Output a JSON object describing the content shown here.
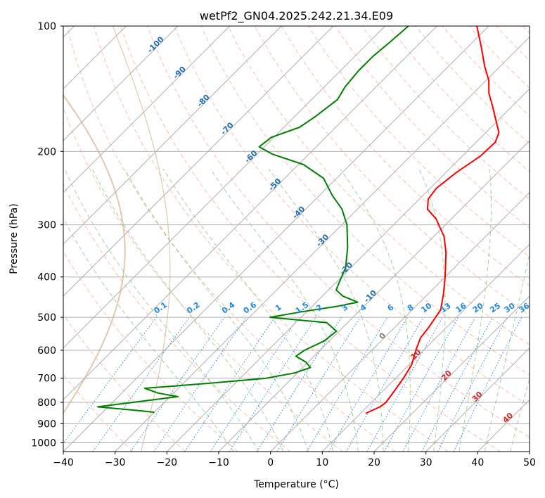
{
  "chart_data": {
    "type": "line",
    "title": "wetPf2_GN04.2025.242.21.34.E09",
    "xlabel": "Temperature (°C)",
    "ylabel": "Pressure (hPa)",
    "xlim": [
      -40,
      50
    ],
    "ylim": [
      1050,
      100
    ],
    "y_scale": "log",
    "skew": "45 degrees",
    "grid": true,
    "x_ticks": [
      "−40",
      "−30",
      "−20",
      "−10",
      "0",
      "10",
      "20",
      "30",
      "40",
      "50"
    ],
    "y_ticks": [
      "100",
      "200",
      "300",
      "400",
      "500",
      "600",
      "700",
      "800",
      "900",
      "1000"
    ],
    "series": [
      {
        "role": "temperature",
        "color": "#ff0000",
        "points": [
          {
            "p": 850,
            "t": 11.0
          },
          {
            "p": 820,
            "t": 12.5
          },
          {
            "p": 800,
            "t": 12.8
          },
          {
            "p": 750,
            "t": 12.2
          },
          {
            "p": 700,
            "t": 11.5
          },
          {
            "p": 650,
            "t": 10.5
          },
          {
            "p": 600,
            "t": 8.5
          },
          {
            "p": 560,
            "t": 7.0
          },
          {
            "p": 530,
            "t": 6.6
          },
          {
            "p": 480,
            "t": 5.5
          },
          {
            "p": 440,
            "t": 3.0
          },
          {
            "p": 400,
            "t": 0.0
          },
          {
            "p": 350,
            "t": -4.5
          },
          {
            "p": 320,
            "t": -8.0
          },
          {
            "p": 290,
            "t": -13.0
          },
          {
            "p": 275,
            "t": -16.5
          },
          {
            "p": 260,
            "t": -18.3
          },
          {
            "p": 245,
            "t": -18.8
          },
          {
            "p": 225,
            "t": -18.0
          },
          {
            "p": 205,
            "t": -16.5
          },
          {
            "p": 190,
            "t": -16.3
          },
          {
            "p": 180,
            "t": -17.5
          },
          {
            "p": 170,
            "t": -20.0
          },
          {
            "p": 155,
            "t": -24.0
          },
          {
            "p": 145,
            "t": -27.0
          },
          {
            "p": 135,
            "t": -29.5
          },
          {
            "p": 125,
            "t": -33.0
          },
          {
            "p": 112,
            "t": -37.5
          },
          {
            "p": 100,
            "t": -42.3
          }
        ]
      },
      {
        "role": "dewpoint",
        "color": "#008000",
        "points": [
          {
            "p": 845,
            "t": -30.0
          },
          {
            "p": 838,
            "t": -33.0
          },
          {
            "p": 830,
            "t": -37.0
          },
          {
            "p": 820,
            "t": -42.0
          },
          {
            "p": 800,
            "t": -36.0
          },
          {
            "p": 775,
            "t": -28.5
          },
          {
            "p": 760,
            "t": -33.0
          },
          {
            "p": 740,
            "t": -36.5
          },
          {
            "p": 720,
            "t": -25.0
          },
          {
            "p": 700,
            "t": -15.0
          },
          {
            "p": 680,
            "t": -10.5
          },
          {
            "p": 660,
            "t": -8.5
          },
          {
            "p": 640,
            "t": -10.5
          },
          {
            "p": 620,
            "t": -13.5
          },
          {
            "p": 600,
            "t": -13.0
          },
          {
            "p": 570,
            "t": -11.0
          },
          {
            "p": 540,
            "t": -10.5
          },
          {
            "p": 515,
            "t": -14.0
          },
          {
            "p": 500,
            "t": -26.0
          },
          {
            "p": 485,
            "t": -21.0
          },
          {
            "p": 470,
            "t": -15.0
          },
          {
            "p": 460,
            "t": -12.0
          },
          {
            "p": 445,
            "t": -16.0
          },
          {
            "p": 430,
            "t": -18.5
          },
          {
            "p": 410,
            "t": -19.5
          },
          {
            "p": 380,
            "t": -21.0
          },
          {
            "p": 340,
            "t": -24.5
          },
          {
            "p": 300,
            "t": -29.0
          },
          {
            "p": 275,
            "t": -33.0
          },
          {
            "p": 255,
            "t": -37.5
          },
          {
            "p": 232,
            "t": -42.5
          },
          {
            "p": 215,
            "t": -49.0
          },
          {
            "p": 203,
            "t": -57.0
          },
          {
            "p": 195,
            "t": -61.0
          },
          {
            "p": 185,
            "t": -60.5
          },
          {
            "p": 175,
            "t": -57.0
          },
          {
            "p": 165,
            "t": -56.0
          },
          {
            "p": 150,
            "t": -55.0
          },
          {
            "p": 140,
            "t": -56.0
          },
          {
            "p": 128,
            "t": -56.5
          },
          {
            "p": 118,
            "t": -56.5
          },
          {
            "p": 110,
            "t": -56.0
          },
          {
            "p": 100,
            "t": -55.5
          }
        ]
      }
    ],
    "dry_adiabats_c": [
      -30,
      -20,
      -10,
      0,
      10,
      20,
      30,
      40,
      50,
      60,
      70,
      80,
      90,
      100,
      110,
      120,
      130,
      140,
      150,
      160,
      170,
      180,
      190,
      200
    ],
    "moist_adiabats_c": [
      -10,
      -5,
      0,
      5,
      10,
      15,
      20,
      25,
      30,
      35,
      40,
      45
    ],
    "mixing_ratio_lines_gkg": [
      "0.1",
      "0.2",
      "0.4",
      "0.6",
      "1",
      "1.5",
      "2",
      "3",
      "4",
      "6",
      "8",
      "10",
      "13",
      "16",
      "20",
      "25",
      "30",
      "36"
    ],
    "isotherm_labels_below_zero": [
      "-100",
      "-90",
      "-80",
      "-70",
      "-60",
      "-50",
      "-40",
      "-30",
      "-20",
      "-10"
    ],
    "isotherm_labels_above_zero": [
      "10",
      "20",
      "30",
      "40"
    ],
    "zero_label": "0",
    "colors": {
      "grid": "#b0b0b0",
      "dry_adiabat": "#ff7f50",
      "moist_adiabat": "#2ca02c",
      "mixing_ratio": "#1e88e5",
      "iso_cold": "#1f6db5",
      "iso_warm": "#d62728",
      "iso_zero": "#808080",
      "tan": "#d2b48c"
    }
  }
}
